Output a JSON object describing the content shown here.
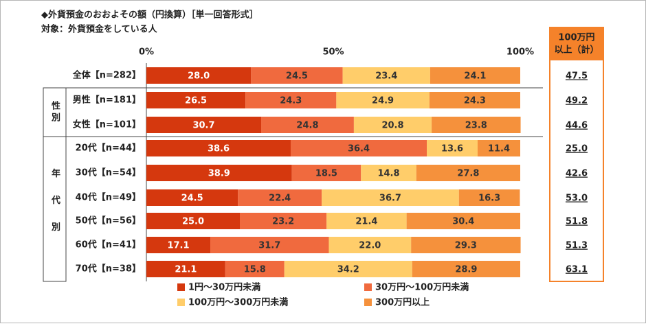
{
  "chart_data": {
    "type": "stacked-bar-horizontal",
    "title": "◆外貨預金のおおよその額（円換算）［単一回答形式］",
    "subtitle": "対象：外貨預金をしている人",
    "xlim": [
      0,
      100
    ],
    "xticks": [
      {
        "value": 0,
        "label": "0%"
      },
      {
        "value": 50,
        "label": "50%"
      },
      {
        "value": 100,
        "label": "100%"
      }
    ],
    "group_labels": [
      "性別",
      "年代別"
    ],
    "categories": [
      "全体【n=282】",
      "男性【n=181】",
      "女性【n=101】",
      "20代【n=44】",
      "30代【n=54】",
      "40代【n=49】",
      "50代【n=56】",
      "60代【n=41】",
      "70代【n=38】"
    ],
    "series": [
      {
        "name": "1円～30万円未満",
        "color": "#d5380e",
        "values": [
          28.0,
          26.5,
          30.7,
          38.6,
          38.9,
          24.5,
          25.0,
          17.1,
          21.1
        ],
        "value_labels": [
          "28.0",
          "26.5",
          "30.7",
          "38.6",
          "38.9",
          "24.5",
          "25.0",
          "17.1",
          "21.1"
        ]
      },
      {
        "name": "30万円～100万円未満",
        "color": "#f06a3e",
        "values": [
          24.5,
          24.3,
          24.8,
          36.4,
          18.5,
          22.4,
          23.2,
          31.7,
          15.8
        ],
        "value_labels": [
          "24.5",
          "24.3",
          "24.8",
          "36.4",
          "18.5",
          "22.4",
          "23.2",
          "31.7",
          "15.8"
        ]
      },
      {
        "name": "100万円～300万円未満",
        "color": "#ffcd6a",
        "values": [
          23.4,
          24.9,
          20.8,
          13.6,
          14.8,
          36.7,
          21.4,
          22.0,
          34.2
        ],
        "value_labels": [
          "23.4",
          "24.9",
          "20.8",
          "13.6",
          "14.8",
          "36.7",
          "21.4",
          "22.0",
          "34.2"
        ]
      },
      {
        "name": "300万円以上",
        "color": "#f5913c",
        "values": [
          24.1,
          24.3,
          23.8,
          11.4,
          27.8,
          16.3,
          30.4,
          29.3,
          28.9
        ],
        "value_labels": [
          "24.1",
          "24.3",
          "23.8",
          "11.4",
          "27.8",
          "16.3",
          "30.4",
          "29.3",
          "28.9"
        ]
      }
    ],
    "totals": {
      "title": [
        "100万円",
        "以上（計）"
      ],
      "color": "#f5822a",
      "values": [
        47.5,
        49.2,
        44.6,
        25.0,
        42.6,
        53.0,
        51.8,
        51.3,
        63.1
      ],
      "value_labels": [
        "47.5",
        "49.2",
        "44.6",
        "25.0",
        "42.6",
        "53.0",
        "51.8",
        "51.3",
        "63.1"
      ]
    }
  }
}
